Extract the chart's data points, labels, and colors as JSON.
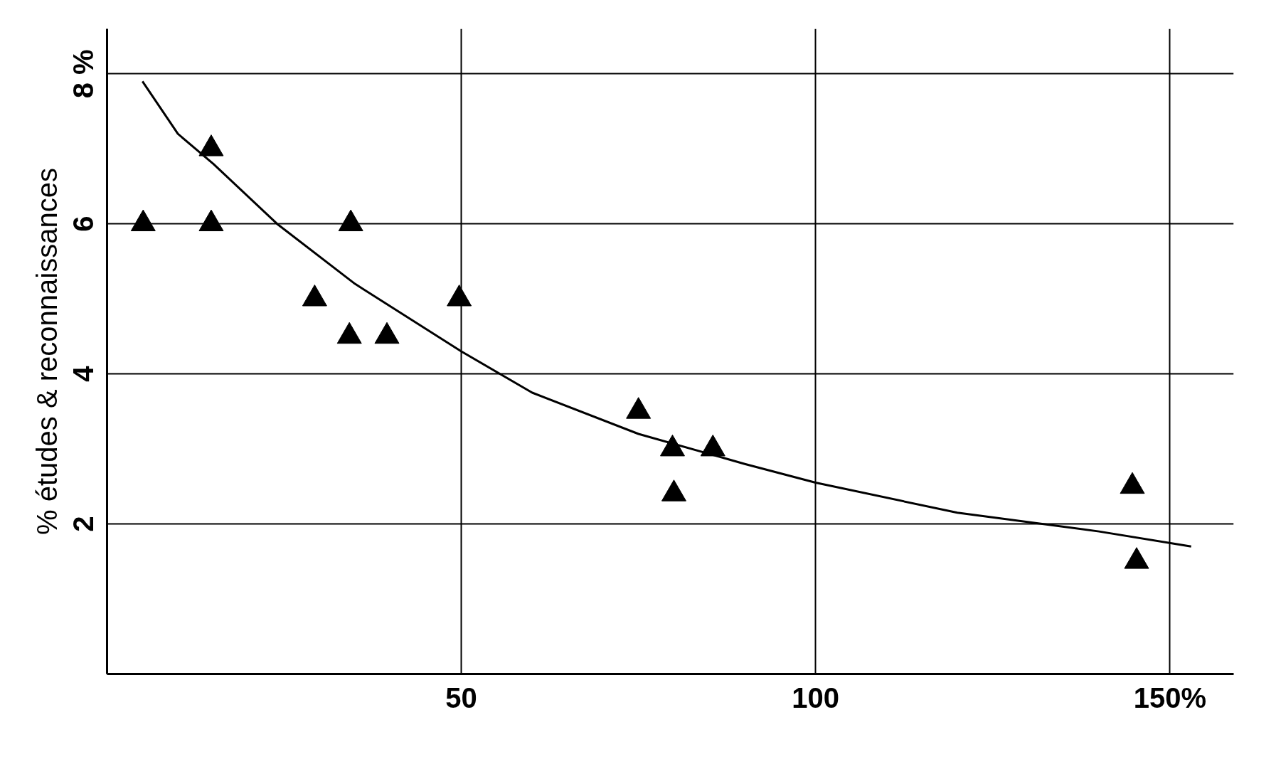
{
  "chart_data": {
    "type": "scatter",
    "ylabel": "% études & reconnaissances",
    "xlim": [
      0,
      159
    ],
    "ylim": [
      0,
      8.6
    ],
    "xticks": [
      50,
      100,
      {
        "value": 150,
        "label": "150%"
      }
    ],
    "yticks": [
      2,
      4,
      6,
      {
        "value": 8,
        "label": "8 %"
      }
    ],
    "grid": true,
    "marker": "triangle",
    "series": [
      {
        "color": "#000000",
        "x": [
          5.1,
          14.7,
          14.7,
          29.3,
          34.4,
          34.2,
          39.5,
          49.7,
          75,
          79.8,
          80,
          85.5,
          144.7,
          145.3
        ],
        "values": [
          6,
          7,
          6,
          5,
          6,
          4.5,
          4.5,
          5,
          3.5,
          3,
          2.4,
          3,
          2.5,
          1.5
        ]
      },
      {
        "type": "line",
        "color": "#000000",
        "marker": "none",
        "x": [
          5,
          10,
          15,
          24,
          35,
          50,
          60,
          75,
          90,
          100,
          120,
          140,
          153
        ],
        "values": [
          7.9,
          7.2,
          6.8,
          6,
          5.2,
          4.3,
          3.75,
          3.2,
          2.8,
          2.55,
          2.15,
          1.9,
          1.7
        ]
      }
    ]
  }
}
